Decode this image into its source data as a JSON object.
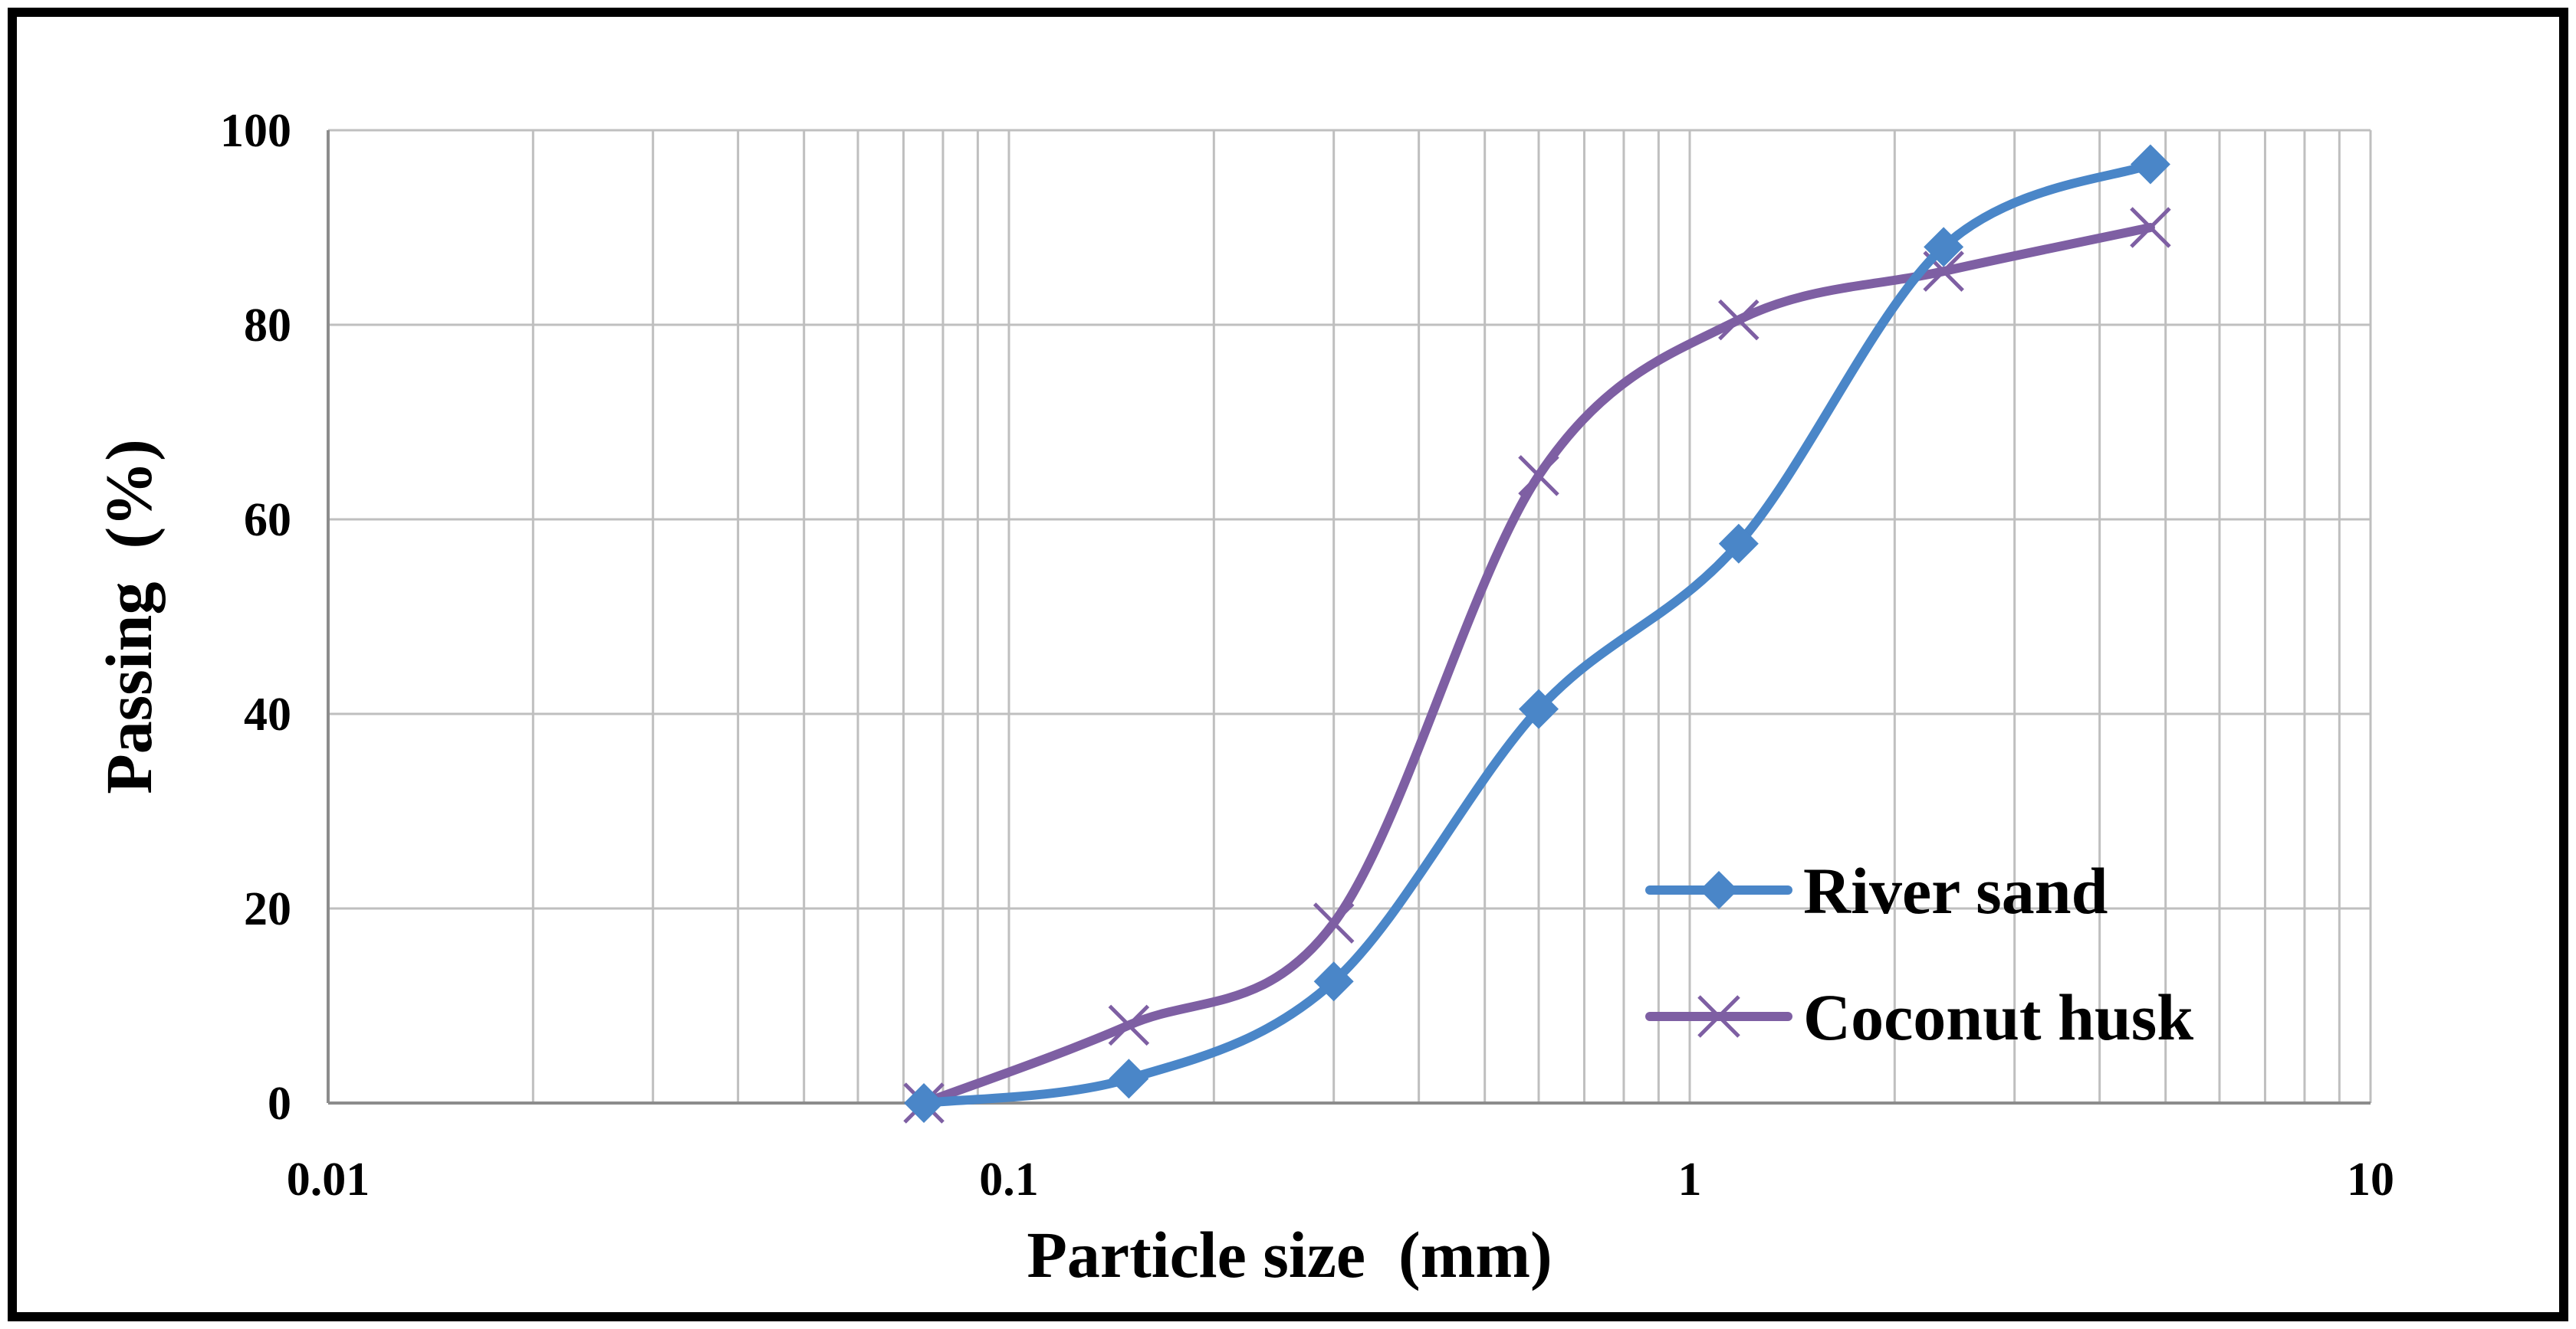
{
  "chart_data": {
    "type": "line",
    "title": "",
    "xlabel": "Particle size  (mm)",
    "ylabel": "Passing  (%)",
    "xscale": "log",
    "xlim": [
      0.01,
      10
    ],
    "ylim": [
      0,
      100
    ],
    "grid": true,
    "legend_position": "bottom-right",
    "x_ticks": [
      0.01,
      0.1,
      1,
      10
    ],
    "x_tick_labels": [
      "0.01",
      "0.1",
      "1",
      "10"
    ],
    "y_ticks": [
      0,
      20,
      40,
      60,
      80,
      100
    ],
    "y_tick_labels": [
      "0",
      "20",
      "40",
      "60",
      "80",
      "100"
    ],
    "series": [
      {
        "name": "River sand",
        "color": "#4A86C8",
        "marker": "diamond",
        "x": [
          0.075,
          0.15,
          0.3,
          0.6,
          1.18,
          2.36,
          4.75
        ],
        "y": [
          0,
          2.5,
          12.5,
          40.5,
          57.5,
          88,
          96.5
        ]
      },
      {
        "name": "Coconut husk",
        "color": "#7E5FA3",
        "marker": "x",
        "x": [
          0.075,
          0.15,
          0.3,
          0.6,
          1.18,
          2.36,
          4.75
        ],
        "y": [
          0,
          8,
          18.5,
          64.5,
          80.5,
          85.5,
          90
        ]
      }
    ]
  }
}
